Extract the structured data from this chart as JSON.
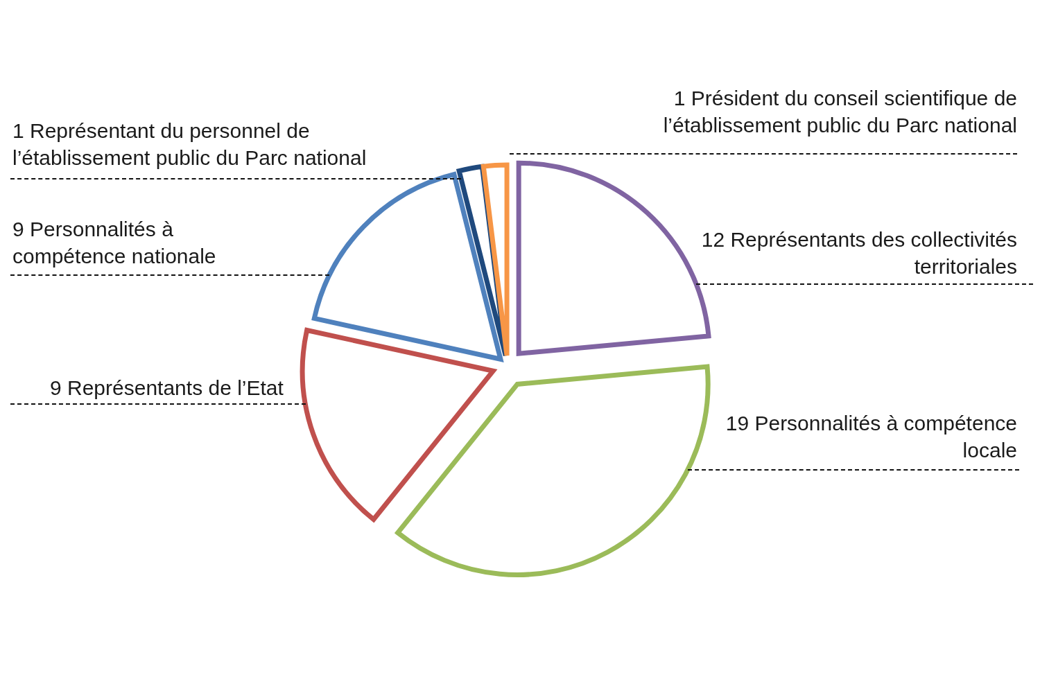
{
  "chart_data": {
    "type": "pie",
    "categories": [
      "12 Représentants des collectivités territoriales",
      "19 Personnalités à compétence locale",
      "9 Représentants de l’Etat",
      "9 Personnalités à compétence nationale",
      "1 Représentant du personnel de l’établissement public du Parc national",
      "1 Président du conseil scientifique de l’établissement public du Parc national"
    ],
    "values": [
      12,
      19,
      9,
      9,
      1,
      1
    ],
    "colors": [
      "#8064a2",
      "#9bbb59",
      "#c0504d",
      "#4f81bd",
      "#1f497d",
      "#f79646"
    ]
  }
}
